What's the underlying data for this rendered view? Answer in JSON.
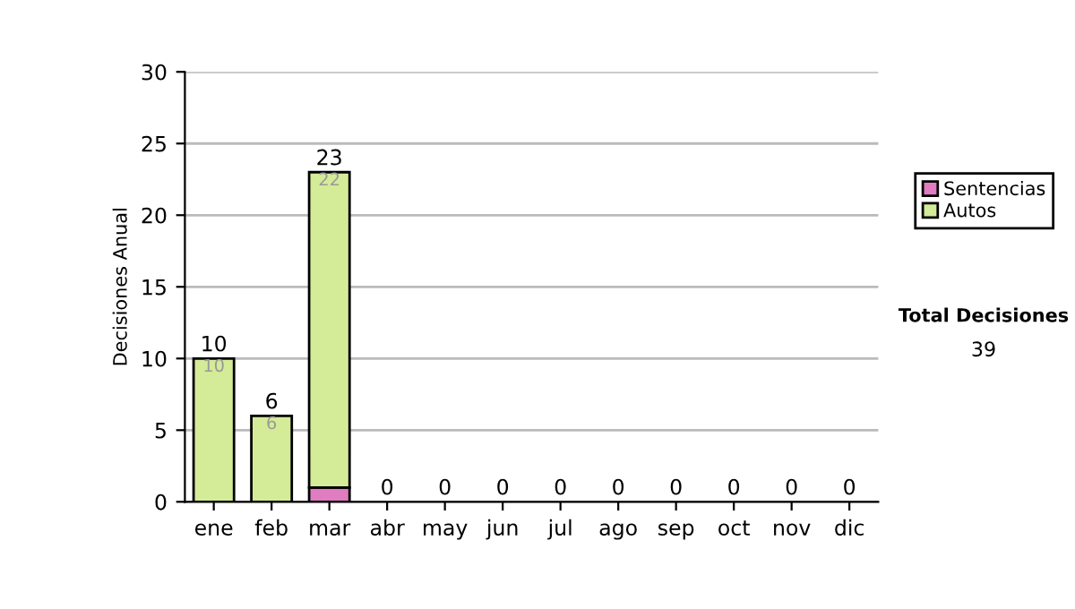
{
  "chart_data": {
    "type": "bar",
    "stacked": true,
    "ylabel": "Decisiones Anual",
    "categories": [
      "ene",
      "feb",
      "mar",
      "abr",
      "may",
      "jun",
      "jul",
      "ago",
      "sep",
      "oct",
      "nov",
      "dic"
    ],
    "series": [
      {
        "name": "Sentencias",
        "color": "#e07cc0",
        "values": [
          0,
          0,
          1,
          0,
          0,
          0,
          0,
          0,
          0,
          0,
          0,
          0
        ]
      },
      {
        "name": "Autos",
        "color": "#d4eb98",
        "values": [
          10,
          6,
          22,
          0,
          0,
          0,
          0,
          0,
          0,
          0,
          0,
          0
        ],
        "value_labels": [
          "10",
          "6",
          "22",
          null,
          null,
          null,
          null,
          null,
          null,
          null,
          null,
          null
        ]
      }
    ],
    "totals": [
      "10",
      "6",
      "23",
      "0",
      "0",
      "0",
      "0",
      "0",
      "0",
      "0",
      "0",
      "0"
    ],
    "ylim": [
      0,
      30
    ],
    "yticks": [
      0,
      5,
      10,
      15,
      20,
      25,
      30
    ],
    "grid": "y",
    "legend": "right",
    "annotations": [
      "Total Decisiones",
      "39"
    ]
  }
}
